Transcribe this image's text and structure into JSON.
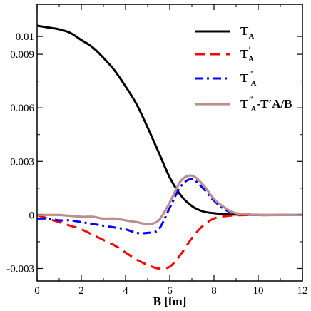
{
  "chart_data": {
    "type": "line",
    "xlabel": "B [fm]",
    "xlim": [
      0,
      12
    ],
    "ylim": [
      -0.0037,
      0.0118
    ],
    "x_ticks": [
      0,
      2,
      4,
      6,
      8,
      10,
      12
    ],
    "x_tick_labels": [
      "0",
      "2",
      "4",
      "6",
      "8",
      "10",
      "12"
    ],
    "y_ticks": [
      -0.003,
      0,
      0.003,
      0.006,
      0.009,
      0.01
    ],
    "y_tick_labels": [
      "-0.003",
      "0",
      "0.003",
      "0.006",
      "0.009",
      "0.01"
    ],
    "legend_position": "top-right",
    "series": [
      {
        "name": "T_A",
        "legend": {
          "base": "T",
          "sub": "A",
          "prime": "",
          "tail": ""
        },
        "color": "#000000",
        "dash": "solid",
        "x": [
          0,
          0.5,
          1,
          1.5,
          2,
          2.5,
          3,
          3.5,
          4,
          4.5,
          5,
          5.5,
          6,
          6.5,
          7,
          7.5,
          8,
          8.5,
          9,
          10,
          11,
          12
        ],
        "y": [
          0.0106,
          0.0105,
          0.0104,
          0.0102,
          0.0098,
          0.0094,
          0.0088,
          0.0081,
          0.0072,
          0.0062,
          0.0049,
          0.0035,
          0.0021,
          0.0011,
          0.0005,
          0.0002,
          0.0001,
          4e-05,
          2e-05,
          0,
          0,
          0
        ]
      },
      {
        "name": "T_A'",
        "legend": {
          "base": "T",
          "sub": "A",
          "prime": "′",
          "tail": ""
        },
        "color": "#ff0000",
        "dash": "long-dash",
        "x": [
          0,
          0.5,
          1,
          1.5,
          2,
          2.5,
          3,
          3.5,
          4,
          4.5,
          5,
          5.5,
          6,
          6.5,
          7,
          7.5,
          8,
          8.5,
          9,
          10,
          11,
          12
        ],
        "y": [
          0,
          -0.0002,
          -0.0004,
          -0.0006,
          -0.0008,
          -0.0011,
          -0.0014,
          -0.0017,
          -0.0021,
          -0.0025,
          -0.0028,
          -0.003,
          -0.0029,
          -0.0022,
          -0.0013,
          -0.0006,
          -0.0002,
          -7e-05,
          -2e-05,
          0,
          0,
          0
        ]
      },
      {
        "name": "T_A''",
        "legend": {
          "base": "T",
          "sub": "A",
          "prime": "″",
          "tail": ""
        },
        "color": "#0000ff",
        "dash": "dash-dot",
        "x": [
          0,
          0.5,
          1,
          1.5,
          2,
          2.5,
          3,
          3.5,
          4,
          4.5,
          5,
          5.5,
          6,
          6.5,
          7,
          7.5,
          8,
          8.5,
          9,
          10,
          11,
          12
        ],
        "y": [
          -0.0002,
          -0.0002,
          -0.0003,
          -0.0003,
          -0.0004,
          -0.0005,
          -0.0006,
          -0.0007,
          -0.0008,
          -0.001,
          -0.001,
          -0.0008,
          0.0004,
          0.0016,
          0.002,
          0.0015,
          0.0008,
          0.0003,
          0.0001,
          0,
          0,
          0
        ]
      },
      {
        "name": "T_A''-T_A'/B",
        "legend": {
          "base": "T",
          "sub": "A",
          "prime": "″",
          "tail": "-T′A/B"
        },
        "color": "#bc8f8f",
        "dash": "solid",
        "x": [
          0,
          0.5,
          1,
          1.5,
          2,
          2.5,
          3,
          3.5,
          4,
          4.5,
          5,
          5.5,
          6,
          6.5,
          7,
          7.5,
          8,
          8.5,
          9,
          10,
          11,
          12
        ],
        "y": [
          0,
          0,
          0,
          -5e-05,
          -0.0001,
          -0.0001,
          -0.0002,
          -0.0002,
          -0.0003,
          -0.0004,
          -0.0005,
          -0.0003,
          0.0007,
          0.0019,
          0.0022,
          0.0017,
          0.0009,
          0.0004,
          0.0001,
          0,
          0,
          0
        ]
      }
    ]
  }
}
